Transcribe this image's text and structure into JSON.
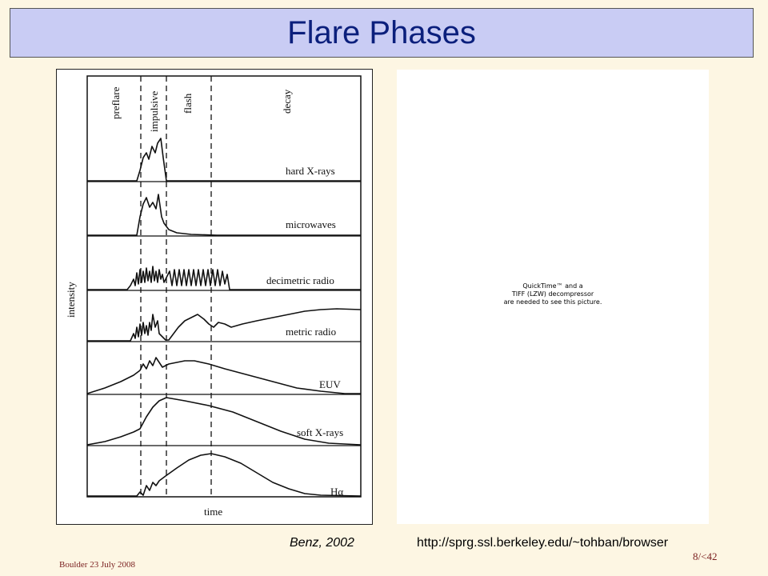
{
  "slide": {
    "title": "Flare Phases",
    "caption_author": "Benz, 2002",
    "caption_url": "http://sprg.ssl.berkeley.edu/~tohban/browser",
    "footer_left": "Boulder 23 July 2008",
    "footer_right": "8/<42"
  },
  "figure": {
    "phases": [
      "preflare",
      "impulsive",
      "flash",
      "decay"
    ],
    "channels": [
      "hard X-rays",
      "microwaves",
      "decimetric radio",
      "metric radio",
      "EUV",
      "soft X-rays",
      "Hα"
    ],
    "y_label": "intensity",
    "x_label": "time"
  },
  "placeholder": {
    "line1": "QuickTime™ and a",
    "line2": "TIFF (LZW) decompressor",
    "line3": "are needed to see this picture."
  }
}
